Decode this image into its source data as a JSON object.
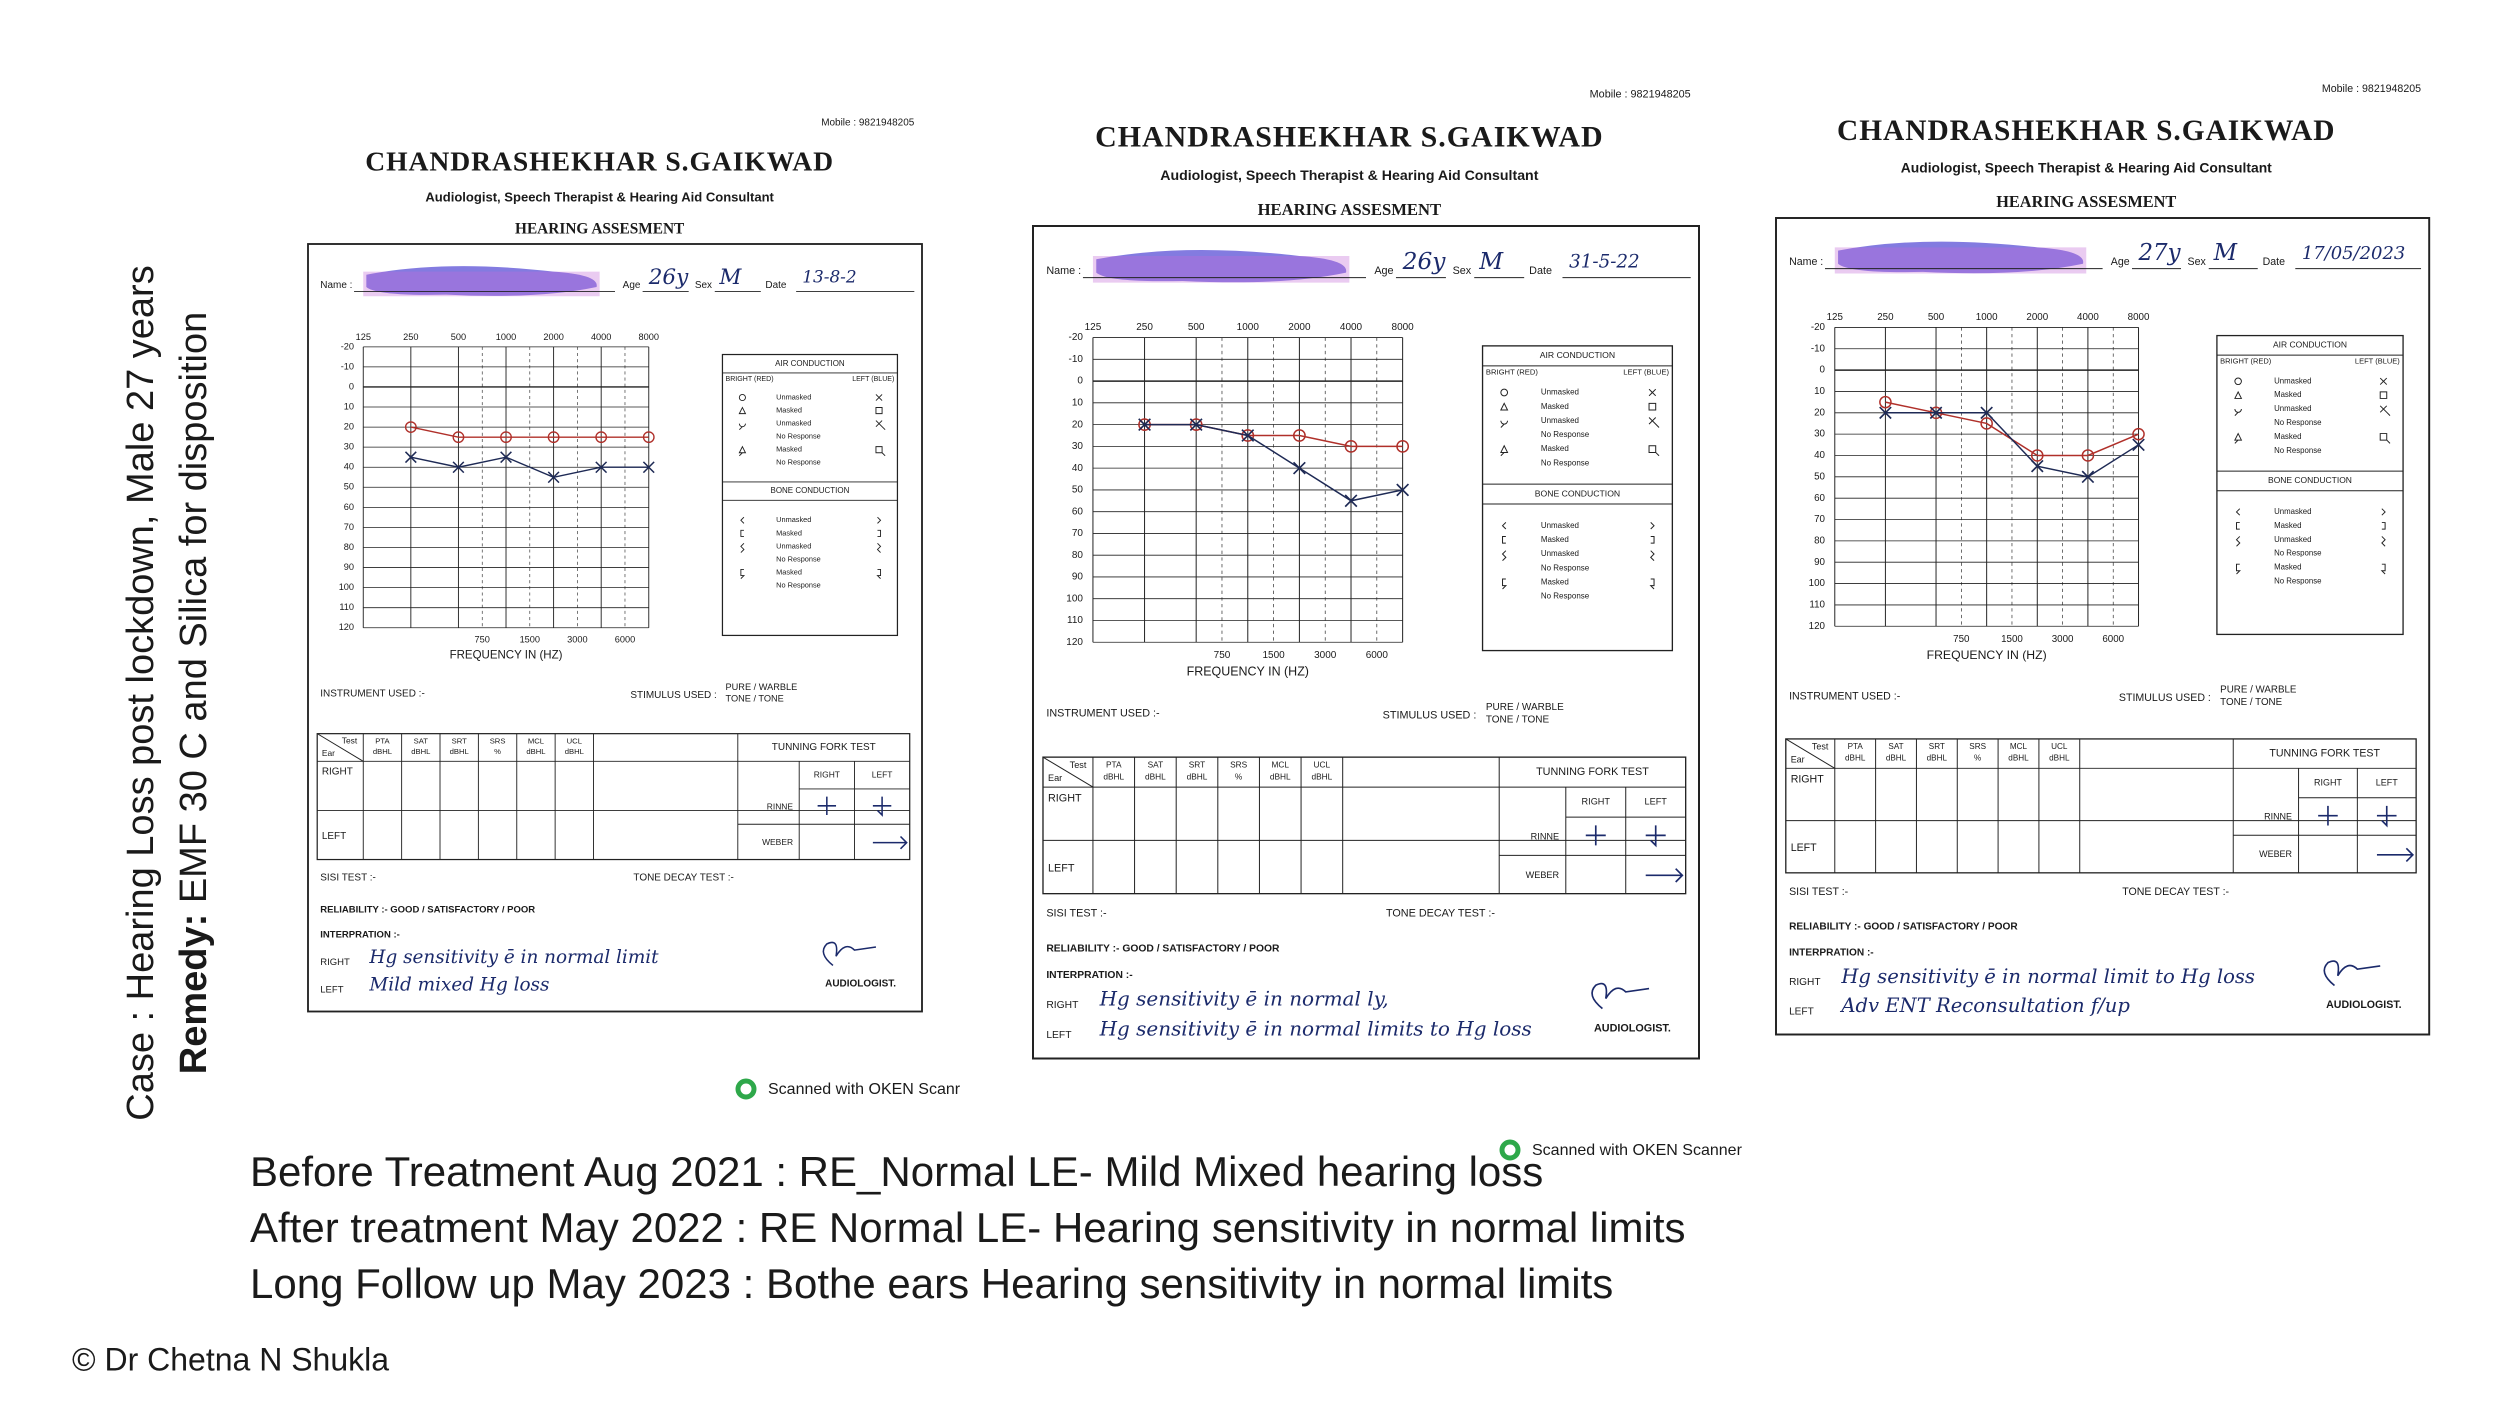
{
  "slide": {
    "case": "Case : Hearing Loss post lockdown, Male 27 years",
    "remedy_label": "Remedy:",
    "remedy_text": " EMF 30 C and Silica for disposition",
    "lines": [
      "Before Treatment Aug 2021 : RE_Normal LE- Mild Mixed hearing loss",
      "After treatment May 2022 : RE Normal LE- Hearing sensitivity in normal limits",
      "Long Follow up May 2023 : Bothe ears Hearing sensitivity in normal limits"
    ],
    "copyright": "© Dr Chetna N Shukla",
    "scanned": [
      "Scanned with OKEN Scanr",
      "Scanned with OKEN Scanner"
    ]
  },
  "forms": [
    {
      "mobile": "Mobile : 9821948205",
      "name": "CHANDRASHEKHAR S.GAIKWAD",
      "profession": "Audiologist, Speech Therapist & Hearing Aid Consultant",
      "heading": "HEARING ASSESMENT",
      "fields": [
        "Name :",
        "Age",
        "Sex",
        "Date"
      ],
      "filled": [
        "26y",
        "M",
        "13-8-2"
      ],
      "freq_top": [
        125,
        250,
        500,
        1000,
        2000,
        4000,
        8000
      ],
      "freq_bottom": [
        750,
        1500,
        3000,
        6000
      ],
      "db": [
        -20,
        -10,
        0,
        10,
        20,
        30,
        40,
        50,
        60,
        70,
        80,
        90,
        100,
        110,
        120
      ],
      "freq_label": "FREQUENCY IN (HZ)",
      "legend_air": "AIR CONDUCTION",
      "legend_right": "BRIGHT (RED)",
      "legend_left": "LEFT (BLUE)",
      "air_rows": [
        "Unmasked",
        "Masked",
        "Unmasked",
        "No Response",
        "Masked",
        "No Response"
      ],
      "legend_bone": "BONE CONDUCTION",
      "bone_rows": [
        "Unmasked",
        "Masked",
        "Unmasked",
        "No Response",
        "Masked",
        "No Response"
      ],
      "instrument": "INSTRUMENT USED :-",
      "stimulus": "STIMULUS USED :",
      "stimulus_opts": [
        "PURE / WARBLE",
        "TONE / TONE"
      ],
      "test_ear": [
        "Test",
        "Ear"
      ],
      "table_head": [
        [
          "PTA",
          "dBHL"
        ],
        [
          "SAT",
          "dBHL"
        ],
        [
          "SRT",
          "dBHL"
        ],
        [
          "SRS",
          "%"
        ],
        [
          "MCL",
          "dBHL"
        ],
        [
          "UCL",
          "dBHL"
        ]
      ],
      "table_rows": [
        "RIGHT",
        "LEFT"
      ],
      "tuning": "TUNNING FORK TEST",
      "tuning_cols": [
        "RIGHT",
        "LEFT"
      ],
      "tuning_rows": [
        "RINNE",
        "WEBER"
      ],
      "sisi": "SISI TEST :-",
      "tone_decay": "TONE DECAY TEST :-",
      "reliability": "RELIABILITY :- GOOD / SATISFACTORY / POOR",
      "interpretation": "INTERPRATION :-",
      "interp_labels": [
        "RIGHT",
        "LEFT"
      ],
      "interp_text": [
        "Hg sensitivity ē in normal limit",
        "Mild mixed Hg loss"
      ],
      "audiologist": "AUDIOLOGIST.",
      "right_db": [
        null,
        20,
        25,
        25,
        25,
        25,
        25
      ],
      "left_db": [
        null,
        35,
        40,
        35,
        45,
        40,
        40
      ]
    },
    {
      "mobile": "Mobile : 9821948205",
      "name": "CHANDRASHEKHAR S.GAIKWAD",
      "profession": "Audiologist, Speech Therapist & Hearing Aid Consultant",
      "heading": "HEARING ASSESMENT",
      "fields": [
        "Name :",
        "Age",
        "Sex",
        "Date"
      ],
      "filled": [
        "26y",
        "M",
        "31-5-22"
      ],
      "freq_top": [
        125,
        250,
        500,
        1000,
        2000,
        4000,
        8000
      ],
      "freq_bottom": [
        750,
        1500,
        3000,
        6000
      ],
      "db": [
        -20,
        -10,
        0,
        10,
        20,
        30,
        40,
        50,
        60,
        70,
        80,
        90,
        100,
        110,
        120
      ],
      "freq_label": "FREQUENCY IN (HZ)",
      "legend_air": "AIR CONDUCTION",
      "legend_right": "BRIGHT (RED)",
      "legend_left": "LEFT (BLUE)",
      "air_rows": [
        "Unmasked",
        "Masked",
        "Unmasked",
        "No Response",
        "Masked",
        "No Response"
      ],
      "legend_bone": "BONE CONDUCTION",
      "bone_rows": [
        "Unmasked",
        "Masked",
        "Unmasked",
        "No Response",
        "Masked",
        "No Response"
      ],
      "instrument": "INSTRUMENT USED :-",
      "stimulus": "STIMULUS USED :",
      "stimulus_opts": [
        "PURE / WARBLE",
        "TONE / TONE"
      ],
      "test_ear": [
        "Test",
        "Ear"
      ],
      "table_head": [
        [
          "PTA",
          "dBHL"
        ],
        [
          "SAT",
          "dBHL"
        ],
        [
          "SRT",
          "dBHL"
        ],
        [
          "SRS",
          "%"
        ],
        [
          "MCL",
          "dBHL"
        ],
        [
          "UCL",
          "dBHL"
        ]
      ],
      "table_rows": [
        "RIGHT",
        "LEFT"
      ],
      "tuning": "TUNNING FORK TEST",
      "tuning_cols": [
        "RIGHT",
        "LEFT"
      ],
      "tuning_rows": [
        "RINNE",
        "WEBER"
      ],
      "sisi": "SISI TEST :-",
      "tone_decay": "TONE DECAY TEST :-",
      "reliability": "RELIABILITY :- GOOD / SATISFACTORY / POOR",
      "interpretation": "INTERPRATION :-",
      "interp_labels": [
        "RIGHT",
        "LEFT"
      ],
      "interp_text": [
        "Hg sensitivity ē in normal ly,",
        "Hg sensitivity ē in normal limits to Hg loss"
      ],
      "audiologist": "AUDIOLOGIST.",
      "right_db": [
        null,
        20,
        20,
        25,
        25,
        30,
        30
      ],
      "left_db": [
        null,
        20,
        20,
        25,
        40,
        55,
        50
      ]
    },
    {
      "mobile": "Mobile : 9821948205",
      "name": "CHANDRASHEKHAR S.GAIKWAD",
      "profession": "Audiologist, Speech Therapist & Hearing Aid Consultant",
      "heading": "HEARING ASSESMENT",
      "fields": [
        "Name :",
        "Age",
        "Sex",
        "Date"
      ],
      "filled": [
        "27y",
        "M",
        "17/05/2023"
      ],
      "freq_top": [
        125,
        250,
        500,
        1000,
        2000,
        4000,
        8000
      ],
      "freq_bottom": [
        750,
        1500,
        3000,
        6000
      ],
      "db": [
        -20,
        -10,
        0,
        10,
        20,
        30,
        40,
        50,
        60,
        70,
        80,
        90,
        100,
        110,
        120
      ],
      "freq_label": "FREQUENCY IN (HZ)",
      "legend_air": "AIR CONDUCTION",
      "legend_right": "BRIGHT (RED)",
      "legend_left": "LEFT (BLUE)",
      "air_rows": [
        "Unmasked",
        "Masked",
        "Unmasked",
        "No Response",
        "Masked",
        "No Response"
      ],
      "legend_bone": "BONE CONDUCTION",
      "bone_rows": [
        "Unmasked",
        "Masked",
        "Unmasked",
        "No Response",
        "Masked",
        "No Response"
      ],
      "instrument": "INSTRUMENT USED :-",
      "stimulus": "STIMULUS USED :",
      "stimulus_opts": [
        "PURE / WARBLE",
        "TONE / TONE"
      ],
      "test_ear": [
        "Test",
        "Ear"
      ],
      "table_head": [
        [
          "PTA",
          "dBHL"
        ],
        [
          "SAT",
          "dBHL"
        ],
        [
          "SRT",
          "dBHL"
        ],
        [
          "SRS",
          "%"
        ],
        [
          "MCL",
          "dBHL"
        ],
        [
          "UCL",
          "dBHL"
        ]
      ],
      "table_rows": [
        "RIGHT",
        "LEFT"
      ],
      "tuning": "TUNNING FORK TEST",
      "tuning_cols": [
        "RIGHT",
        "LEFT"
      ],
      "tuning_rows": [
        "RINNE",
        "WEBER"
      ],
      "sisi": "SISI TEST :-",
      "tone_decay": "TONE DECAY TEST :-",
      "reliability": "RELIABILITY :- GOOD / SATISFACTORY / POOR",
      "interpretation": "INTERPRATION :-",
      "interp_labels": [
        "RIGHT",
        "LEFT"
      ],
      "interp_text": [
        "Hg sensitivity ē in normal limit to Hg loss",
        "Adv ENT Reconsultation f/up"
      ],
      "audiologist": "AUDIOLOGIST.",
      "right_db": [
        null,
        15,
        20,
        25,
        40,
        40,
        30
      ],
      "left_db": [
        null,
        20,
        20,
        20,
        45,
        50,
        35
      ]
    }
  ]
}
